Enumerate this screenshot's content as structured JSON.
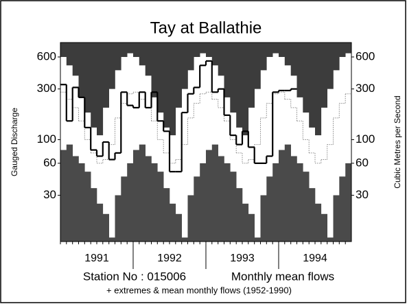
{
  "chart_data": {
    "type": "step",
    "title": "Tay at Ballathie",
    "ylabel": "Gauged Discharge",
    "y2label": "Cubic Metres per Second",
    "station": "Station No : 015006",
    "subtitle": "Monthly mean flows",
    "note": "+ extremes & mean monthly flows (1952-1990)",
    "log_y": true,
    "ylim": [
      11,
      820
    ],
    "yticks": [
      30,
      60,
      100,
      300,
      600
    ],
    "xlim": [
      1991,
      1995
    ],
    "xticks": [
      {
        "value": 1991.5,
        "label": "1991"
      },
      {
        "value": 1992.5,
        "label": "1992"
      },
      {
        "value": 1993.5,
        "label": "1993"
      },
      {
        "value": 1994.5,
        "label": "1994"
      }
    ],
    "x": [
      1991.0,
      1991.083,
      1991.167,
      1991.25,
      1991.333,
      1991.417,
      1991.5,
      1991.583,
      1991.667,
      1991.75,
      1991.833,
      1991.917,
      1992.0,
      1992.083,
      1992.167,
      1992.25,
      1992.333,
      1992.417,
      1992.5,
      1992.583,
      1992.667,
      1992.75,
      1992.833,
      1992.917,
      1993.0,
      1993.083,
      1993.167,
      1993.25,
      1993.333,
      1993.417,
      1993.5,
      1993.583,
      1993.667,
      1993.75,
      1993.833,
      1993.917,
      1994.0,
      1994.083,
      1994.167,
      1994.25,
      1994.333,
      1994.417,
      1994.5,
      1994.583,
      1994.667,
      1994.75,
      1994.833,
      1994.917
    ],
    "series": [
      {
        "role": "max",
        "color": "#3c3c3c",
        "values": [
          600,
          500,
          400,
          250,
          180,
          130,
          110,
          200,
          300,
          450,
          600,
          650,
          600,
          500,
          400,
          250,
          180,
          130,
          110,
          200,
          300,
          450,
          600,
          650,
          600,
          500,
          400,
          250,
          180,
          130,
          110,
          200,
          300,
          450,
          600,
          650,
          600,
          500,
          400,
          250,
          180,
          130,
          110,
          200,
          300,
          450,
          600,
          650
        ]
      },
      {
        "role": "min",
        "color": "#4a4a4a",
        "values": [
          80,
          90,
          70,
          60,
          50,
          35,
          25,
          20,
          12,
          30,
          45,
          60,
          80,
          90,
          70,
          60,
          50,
          35,
          25,
          20,
          12,
          30,
          45,
          60,
          80,
          90,
          70,
          60,
          50,
          35,
          25,
          20,
          12,
          30,
          45,
          60,
          80,
          90,
          70,
          60,
          50,
          35,
          25,
          20,
          12,
          30,
          45,
          60
        ]
      },
      {
        "role": "mean",
        "color": "#888888",
        "values": [
          280,
          240,
          200,
          150,
          100,
          75,
          60,
          65,
          90,
          160,
          220,
          270,
          280,
          240,
          200,
          150,
          100,
          75,
          60,
          65,
          90,
          160,
          220,
          270,
          280,
          240,
          200,
          150,
          100,
          75,
          60,
          65,
          90,
          160,
          220,
          270,
          280,
          240,
          200,
          150,
          100,
          75,
          60,
          65,
          90,
          160,
          220,
          270
        ]
      },
      {
        "role": "flow",
        "color": "#000000",
        "values": [
          330,
          150,
          310,
          250,
          130,
          80,
          70,
          95,
          65,
          75,
          280,
          210,
          200,
          280,
          200,
          280,
          150,
          120,
          50,
          50,
          180,
          270,
          310,
          500,
          550,
          280,
          300,
          170,
          110,
          90,
          120,
          85,
          60,
          60,
          70,
          280,
          290,
          290,
          300,
          null,
          null,
          null,
          null,
          null,
          null,
          null,
          null,
          null
        ]
      }
    ]
  }
}
